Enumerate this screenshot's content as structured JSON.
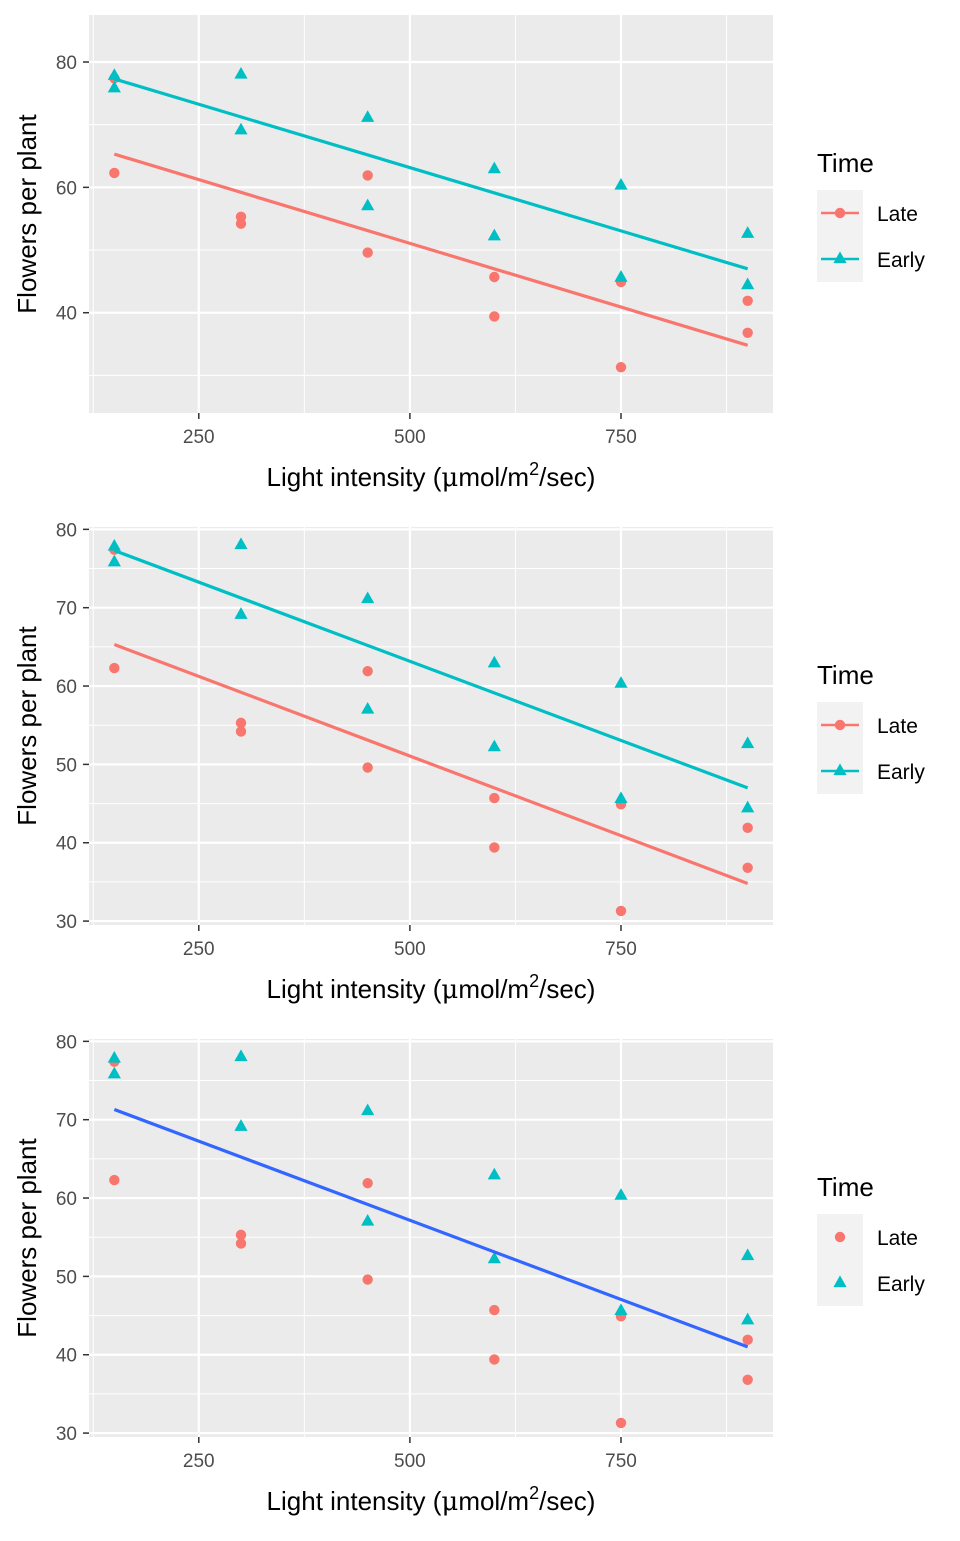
{
  "chart_data": [
    {
      "type": "scatter",
      "panel": "top",
      "fit": "per-group",
      "xlabel": "Light intensity (μmol/m²/sec)",
      "xlabel_parts": {
        "pre": "Light intensity (",
        "mu": "μ",
        "mid": "mol/m",
        "sup": "2",
        "post": "/sec)"
      },
      "ylabel": "Flowers per plant",
      "xlim": [
        120,
        930
      ],
      "ylim": [
        24,
        87.5
      ],
      "xticks": [
        250,
        500,
        750
      ],
      "xtick_labels": [
        "250",
        "500",
        "750"
      ],
      "yticks": [
        40,
        60,
        80
      ],
      "ytick_labels": [
        "40",
        "60",
        "80"
      ],
      "legend_title": "Time",
      "legend_position": "right",
      "grid": true,
      "series": [
        {
          "name": "Late",
          "color": "#F8766D",
          "shape": "circle",
          "x": [
            150,
            150,
            300,
            300,
            450,
            450,
            600,
            600,
            750,
            750,
            900,
            900
          ],
          "y": [
            62.3,
            77.4,
            55.3,
            54.2,
            49.6,
            61.9,
            39.4,
            45.7,
            31.3,
            44.9,
            36.8,
            41.9
          ],
          "fit_line": {
            "x": [
              150,
              900
            ],
            "y": [
              65.3,
              34.8
            ]
          }
        },
        {
          "name": "Early",
          "color": "#00BFC4",
          "shape": "triangle",
          "x": [
            150,
            150,
            300,
            300,
            450,
            450,
            600,
            600,
            750,
            750,
            900,
            900
          ],
          "y": [
            77.8,
            75.8,
            78.0,
            69.1,
            71.1,
            57.0,
            62.9,
            52.2,
            60.3,
            45.6,
            52.6,
            44.4
          ],
          "fit_line": {
            "x": [
              150,
              900
            ],
            "y": [
              77.3,
              47.0
            ]
          }
        }
      ]
    },
    {
      "type": "scatter",
      "panel": "middle",
      "fit": "per-group",
      "xlabel": "Light intensity (μmol/m²/sec)",
      "xlabel_parts": {
        "pre": "Light intensity (",
        "mu": "μ",
        "mid": "mol/m",
        "sup": "2",
        "post": "/sec)"
      },
      "ylabel": "Flowers per plant",
      "xlim": [
        120,
        930
      ],
      "ylim": [
        29.5,
        80.3
      ],
      "xticks": [
        250,
        500,
        750
      ],
      "xtick_labels": [
        "250",
        "500",
        "750"
      ],
      "yticks": [
        30,
        40,
        50,
        60,
        70,
        80
      ],
      "ytick_labels": [
        "30",
        "40",
        "50",
        "60",
        "70",
        "80"
      ],
      "legend_title": "Time",
      "legend_position": "right",
      "grid": true,
      "series": [
        {
          "name": "Late",
          "color": "#F8766D",
          "shape": "circle",
          "x": [
            150,
            150,
            300,
            300,
            450,
            450,
            600,
            600,
            750,
            750,
            900,
            900
          ],
          "y": [
            62.3,
            77.4,
            55.3,
            54.2,
            49.6,
            61.9,
            39.4,
            45.7,
            31.3,
            44.9,
            36.8,
            41.9
          ],
          "fit_line": {
            "x": [
              150,
              900
            ],
            "y": [
              65.3,
              34.8
            ]
          }
        },
        {
          "name": "Early",
          "color": "#00BFC4",
          "shape": "triangle",
          "x": [
            150,
            150,
            300,
            300,
            450,
            450,
            600,
            600,
            750,
            750,
            900,
            900
          ],
          "y": [
            77.8,
            75.8,
            78.0,
            69.1,
            71.1,
            57.0,
            62.9,
            52.2,
            60.3,
            45.6,
            52.6,
            44.4
          ],
          "fit_line": {
            "x": [
              150,
              900
            ],
            "y": [
              77.3,
              47.0
            ]
          }
        }
      ]
    },
    {
      "type": "scatter",
      "panel": "bottom",
      "fit": "pooled",
      "xlabel": "Light intensity (μmol/m²/sec)",
      "xlabel_parts": {
        "pre": "Light intensity (",
        "mu": "μ",
        "mid": "mol/m",
        "sup": "2",
        "post": "/sec)"
      },
      "ylabel": "Flowers per plant",
      "xlim": [
        120,
        930
      ],
      "ylim": [
        29.5,
        80.3
      ],
      "xticks": [
        250,
        500,
        750
      ],
      "xtick_labels": [
        "250",
        "500",
        "750"
      ],
      "yticks": [
        30,
        40,
        50,
        60,
        70,
        80
      ],
      "ytick_labels": [
        "30",
        "40",
        "50",
        "60",
        "70",
        "80"
      ],
      "legend_title": "Time",
      "legend_position": "right",
      "grid": true,
      "fit_line": {
        "color": "#3366FF",
        "x": [
          150,
          900
        ],
        "y": [
          71.3,
          41.0
        ]
      },
      "series": [
        {
          "name": "Late",
          "color": "#F8766D",
          "shape": "circle",
          "x": [
            150,
            150,
            300,
            300,
            450,
            450,
            600,
            600,
            750,
            750,
            900,
            900
          ],
          "y": [
            62.3,
            77.4,
            55.3,
            54.2,
            49.6,
            61.9,
            39.4,
            45.7,
            31.3,
            44.9,
            36.8,
            41.9
          ]
        },
        {
          "name": "Early",
          "color": "#00BFC4",
          "shape": "triangle",
          "x": [
            150,
            150,
            300,
            300,
            450,
            450,
            600,
            600,
            750,
            750,
            900,
            900
          ],
          "y": [
            77.8,
            75.8,
            78.0,
            69.1,
            71.1,
            57.0,
            62.9,
            52.2,
            60.3,
            45.6,
            52.6,
            44.4
          ]
        }
      ]
    }
  ]
}
